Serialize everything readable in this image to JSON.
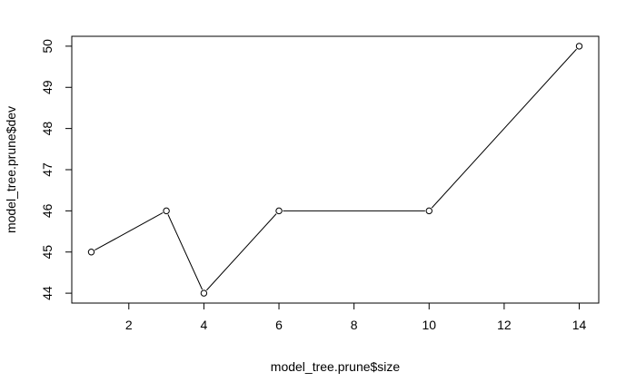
{
  "chart_data": {
    "type": "line",
    "markers": "open-circle",
    "x": [
      1,
      3,
      4,
      6,
      10,
      14
    ],
    "y": [
      45,
      46,
      44,
      46,
      46,
      50
    ],
    "xlabel": "model_tree.prune$size",
    "ylabel": "model_tree.prune$dev",
    "xlim": [
      0.48,
      14.52
    ],
    "ylim": [
      43.76,
      50.24
    ],
    "xticks": [
      2,
      4,
      6,
      8,
      10,
      12,
      14
    ],
    "yticks": [
      44,
      45,
      46,
      47,
      48,
      49,
      50
    ],
    "grid": false,
    "legend": "none",
    "colors": {
      "line": "#000000",
      "marker_fill": "#ffffff",
      "box": "#000000"
    }
  }
}
